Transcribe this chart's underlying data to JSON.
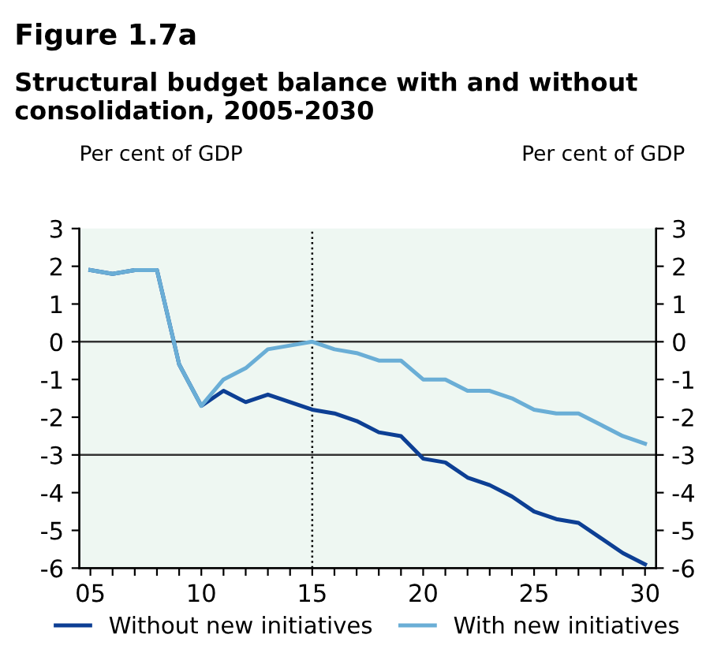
{
  "chart_data": {
    "type": "line",
    "title": "Figure 1.7a",
    "subtitle": "Structural budget balance with and without consolidation, 2005-2030",
    "ylabel": "Per cent of GDP",
    "y2label": "Per cent of GDP",
    "x": [
      2005,
      2006,
      2007,
      2008,
      2009,
      2010,
      2011,
      2012,
      2013,
      2014,
      2015,
      2016,
      2017,
      2018,
      2019,
      2020,
      2021,
      2022,
      2023,
      2024,
      2025,
      2026,
      2027,
      2028,
      2029,
      2030
    ],
    "series": [
      {
        "name": "Without new initiatives",
        "color": "#0d3f94",
        "values": [
          1.9,
          1.8,
          1.9,
          1.9,
          -0.6,
          -1.7,
          -1.3,
          -1.6,
          -1.4,
          -1.6,
          -1.8,
          -1.9,
          -2.1,
          -2.4,
          -2.5,
          -3.1,
          -3.2,
          -3.6,
          -3.8,
          -4.1,
          -4.5,
          -4.7,
          -4.8,
          -5.2,
          -5.6,
          -5.9
        ]
      },
      {
        "name": "With new initiatives",
        "color": "#6aaed6",
        "values": [
          1.9,
          1.8,
          1.9,
          1.9,
          -0.6,
          -1.7,
          -1.0,
          -0.7,
          -0.2,
          -0.1,
          0.0,
          -0.2,
          -0.3,
          -0.5,
          -0.5,
          -1.0,
          -1.0,
          -1.3,
          -1.3,
          -1.5,
          -1.8,
          -1.9,
          -1.9,
          -2.2,
          -2.5,
          -2.7
        ]
      }
    ],
    "xlim": [
      2004.5,
      2030.5
    ],
    "xticks": [
      {
        "value": 2005,
        "label": "05"
      },
      {
        "value": 2006,
        "label": null
      },
      {
        "value": 2007,
        "label": null
      },
      {
        "value": 2008,
        "label": null
      },
      {
        "value": 2009,
        "label": null
      },
      {
        "value": 2010,
        "label": "10"
      },
      {
        "value": 2011,
        "label": null
      },
      {
        "value": 2012,
        "label": null
      },
      {
        "value": 2013,
        "label": null
      },
      {
        "value": 2014,
        "label": null
      },
      {
        "value": 2015,
        "label": "15"
      },
      {
        "value": 2016,
        "label": null
      },
      {
        "value": 2017,
        "label": null
      },
      {
        "value": 2018,
        "label": null
      },
      {
        "value": 2019,
        "label": null
      },
      {
        "value": 2020,
        "label": "20"
      },
      {
        "value": 2021,
        "label": null
      },
      {
        "value": 2022,
        "label": null
      },
      {
        "value": 2023,
        "label": null
      },
      {
        "value": 2024,
        "label": null
      },
      {
        "value": 2025,
        "label": "25"
      },
      {
        "value": 2026,
        "label": null
      },
      {
        "value": 2027,
        "label": null
      },
      {
        "value": 2028,
        "label": null
      },
      {
        "value": 2029,
        "label": null
      },
      {
        "value": 2030,
        "label": "30"
      }
    ],
    "ylim": [
      -6,
      3
    ],
    "yticks": [
      -6,
      -5,
      -4,
      -3,
      -2,
      -1,
      0,
      1,
      2,
      3
    ],
    "y2lim": [
      -6,
      3
    ],
    "y2ticks": [
      -6,
      -5,
      -4,
      -3,
      -2,
      -1,
      0,
      1,
      2,
      3
    ],
    "ref_lines": [
      {
        "axis": "y",
        "value": 0,
        "color": "#333333",
        "line_style": "solid"
      },
      {
        "axis": "y",
        "value": -3,
        "color": "#333333",
        "line_style": "solid"
      },
      {
        "axis": "x",
        "value": 2015,
        "color": "#000000",
        "line_style": "dotted"
      }
    ],
    "grid": false,
    "legend": "bottom",
    "marker": "none",
    "line_style": "solid"
  }
}
